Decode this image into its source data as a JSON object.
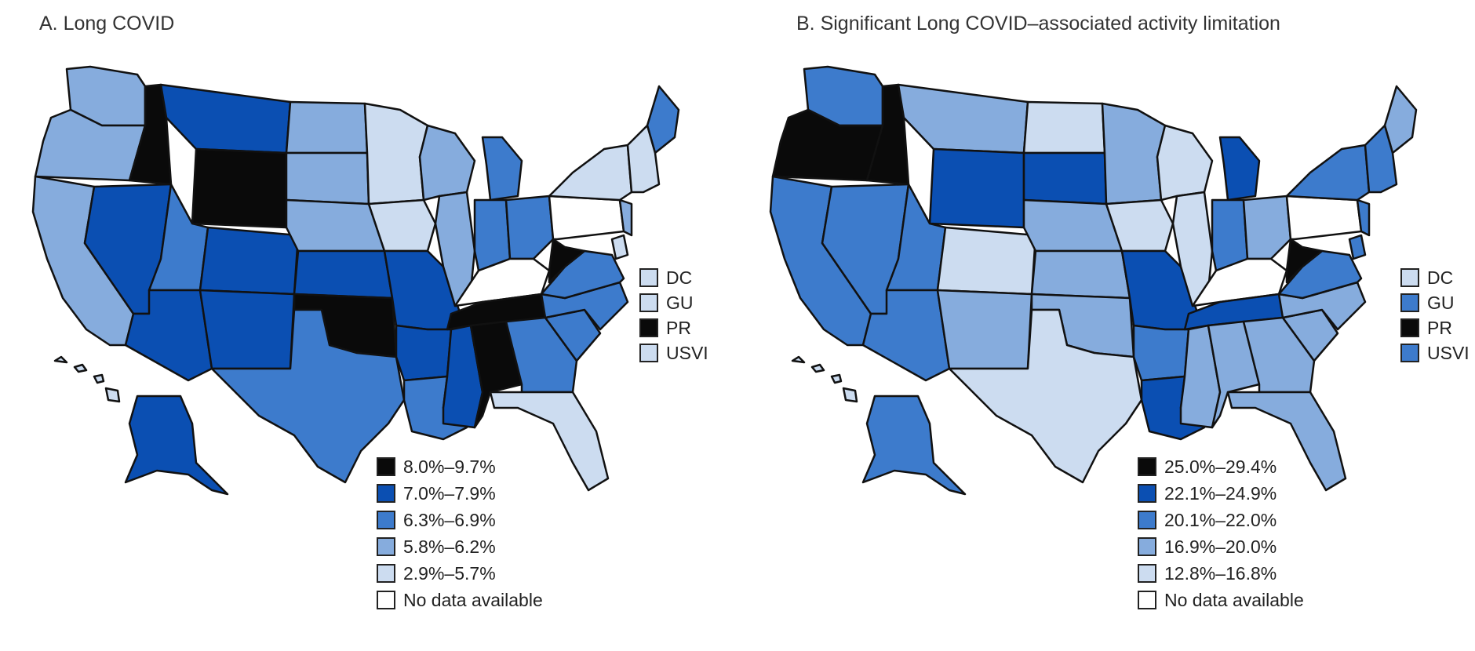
{
  "colors": {
    "c1": "#0a0a0a",
    "c2": "#0b4fb2",
    "c3": "#3d7bcc",
    "c4": "#86acdd",
    "c5": "#ccdcf0",
    "c0": "#ffffff"
  },
  "maps": [
    {
      "title": "A. Long COVID",
      "territories": [
        {
          "label": "DC",
          "class": "c5"
        },
        {
          "label": "GU",
          "class": "c5"
        },
        {
          "label": "PR",
          "class": "c1"
        },
        {
          "label": "USVI",
          "class": "c5"
        }
      ],
      "legend": [
        {
          "label": "8.0%–9.7%",
          "class": "c1"
        },
        {
          "label": "7.0%–7.9%",
          "class": "c2"
        },
        {
          "label": "6.3%–6.9%",
          "class": "c3"
        },
        {
          "label": "5.8%–6.2%",
          "class": "c4"
        },
        {
          "label": "2.9%–5.7%",
          "class": "c5"
        },
        {
          "label": "No data available",
          "class": "c0"
        }
      ],
      "states": {
        "WA": "c4",
        "OR": "c4",
        "CA": "c4",
        "ID": "c1",
        "NV": "c2",
        "MT": "c2",
        "WY": "c1",
        "UT": "c3",
        "AZ": "c2",
        "CO": "c2",
        "NM": "c2",
        "ND": "c4",
        "SD": "c4",
        "NE": "c4",
        "KS": "c2",
        "OK": "c1",
        "TX": "c3",
        "MN": "c5",
        "IA": "c5",
        "MO": "c2",
        "AR": "c2",
        "LA": "c3",
        "WI": "c4",
        "IL": "c4",
        "MI": "c3",
        "IN": "c3",
        "OH": "c3",
        "KY": "c0",
        "TN": "c1",
        "MS": "c2",
        "AL": "c1",
        "GA": "c3",
        "FL": "c5",
        "SC": "c3",
        "NC": "c3",
        "VA": "c3",
        "WV": "c1",
        "PA": "c0",
        "NY": "c5",
        "ME": "c3",
        "NE_STATES": "c5",
        "NJ": "c4",
        "DELMAR": "c5",
        "AK": "c2",
        "HI": "c5"
      }
    },
    {
      "title": "B. Significant Long COVID–associated activity limitation",
      "territories": [
        {
          "label": "DC",
          "class": "c5"
        },
        {
          "label": "GU",
          "class": "c3"
        },
        {
          "label": "PR",
          "class": "c1"
        },
        {
          "label": "USVI",
          "class": "c3"
        }
      ],
      "legend": [
        {
          "label": "25.0%–29.4%",
          "class": "c1"
        },
        {
          "label": "22.1%–24.9%",
          "class": "c2"
        },
        {
          "label": "20.1%–22.0%",
          "class": "c3"
        },
        {
          "label": "16.9%–20.0%",
          "class": "c4"
        },
        {
          "label": "12.8%–16.8%",
          "class": "c5"
        },
        {
          "label": "No data available",
          "class": "c0"
        }
      ],
      "states": {
        "WA": "c3",
        "OR": "c1",
        "CA": "c3",
        "ID": "c1",
        "NV": "c3",
        "MT": "c4",
        "WY": "c2",
        "UT": "c3",
        "AZ": "c3",
        "CO": "c5",
        "NM": "c4",
        "ND": "c5",
        "SD": "c2",
        "NE": "c4",
        "KS": "c4",
        "OK": "c4",
        "TX": "c5",
        "MN": "c4",
        "IA": "c5",
        "MO": "c2",
        "AR": "c3",
        "LA": "c2",
        "WI": "c5",
        "IL": "c5",
        "MI": "c2",
        "IN": "c3",
        "OH": "c4",
        "KY": "c0",
        "TN": "c2",
        "MS": "c4",
        "AL": "c4",
        "GA": "c4",
        "FL": "c4",
        "SC": "c4",
        "NC": "c4",
        "VA": "c3",
        "WV": "c1",
        "PA": "c0",
        "NY": "c3",
        "ME": "c4",
        "NE_STATES": "c3",
        "NJ": "c3",
        "DELMAR": "c3",
        "AK": "c3",
        "HI": "c5"
      }
    }
  ]
}
